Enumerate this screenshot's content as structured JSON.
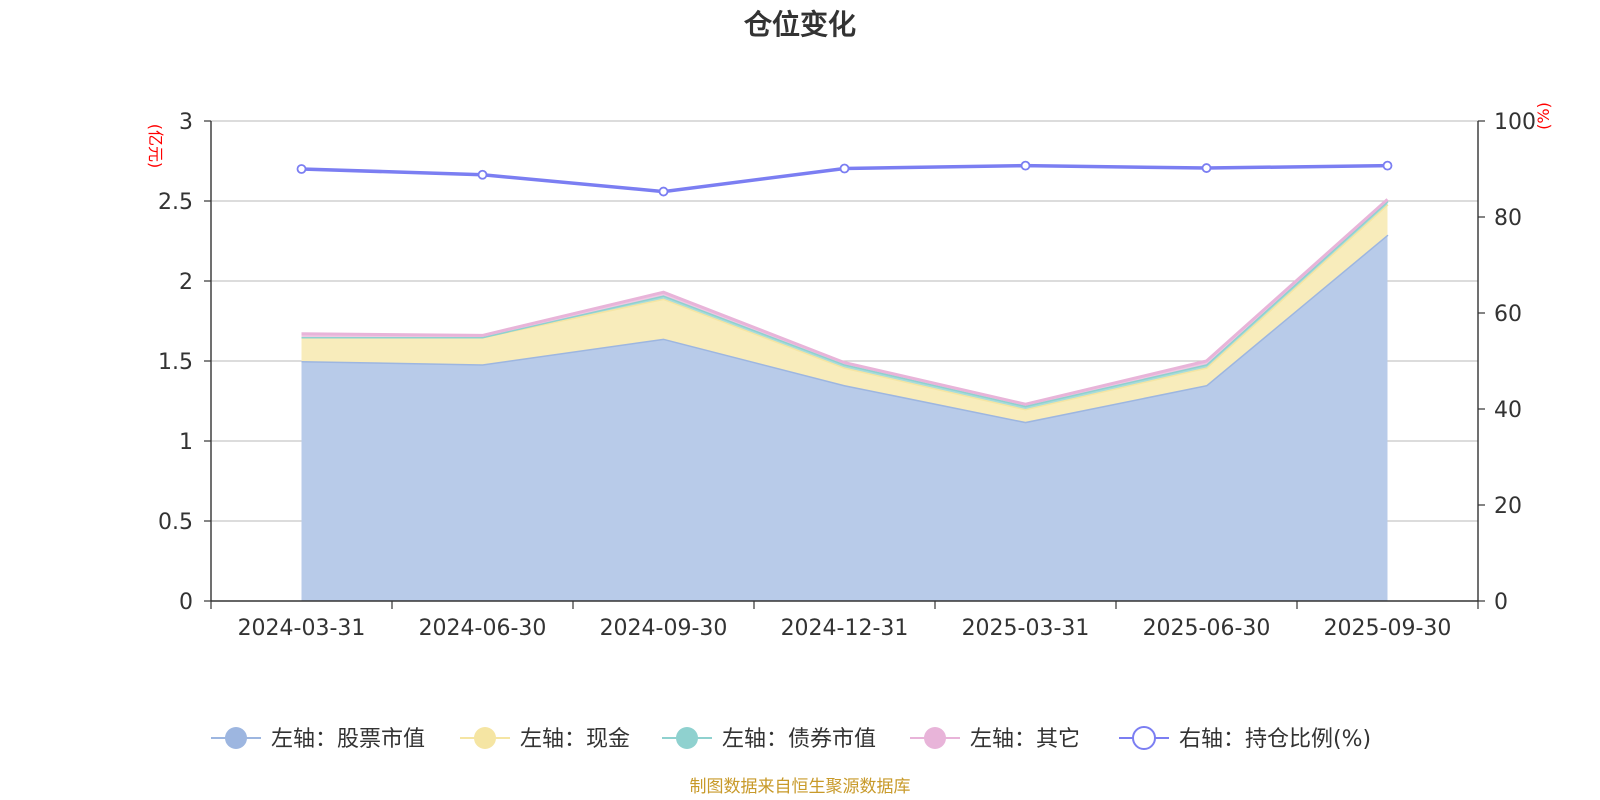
{
  "chart_data": {
    "type": "area",
    "title": "仓位变化",
    "categories": [
      "2024-03-31",
      "2024-06-30",
      "2024-09-30",
      "2024-12-31",
      "2025-03-31",
      "2025-06-30",
      "2025-09-30"
    ],
    "left_axis": {
      "label": "(亿元)",
      "min": 0,
      "max": 3,
      "ticks": [
        "0",
        "0.5",
        "1",
        "1.5",
        "2",
        "2.5",
        "3"
      ],
      "tick_values": [
        0,
        0.5,
        1,
        1.5,
        2,
        2.5,
        3
      ]
    },
    "right_axis": {
      "label": "(%)",
      "min": 0,
      "max": 100,
      "ticks": [
        "0",
        "20",
        "40",
        "60",
        "80",
        "100"
      ],
      "tick_values": [
        0,
        20,
        40,
        60,
        80,
        100
      ]
    },
    "series": [
      {
        "name": "左轴：股票市值",
        "axis": "left",
        "stack": true,
        "color": "#9db6e0",
        "fill": "#b8cbe9",
        "values": [
          1.5,
          1.48,
          1.64,
          1.35,
          1.12,
          1.35,
          2.29
        ]
      },
      {
        "name": "左轴：现金",
        "axis": "left",
        "stack": true,
        "color": "#f5e5a3",
        "fill": "#f8ecbb",
        "values": [
          0.15,
          0.17,
          0.25,
          0.11,
          0.08,
          0.11,
          0.19
        ]
      },
      {
        "name": "左轴：债券市值",
        "axis": "left",
        "stack": true,
        "color": "#8fd1cf",
        "fill": "#a7dcda",
        "values": [
          0.0,
          0.0,
          0.02,
          0.02,
          0.02,
          0.02,
          0.02
        ]
      },
      {
        "name": "左轴：其它",
        "axis": "left",
        "stack": true,
        "color": "#e8b4d9",
        "fill": "#efc8e3",
        "values": [
          0.02,
          0.01,
          0.02,
          0.01,
          0.01,
          0.02,
          0.01
        ]
      },
      {
        "name": "右轴：持仓比例(%)",
        "axis": "right",
        "stack": false,
        "type": "line",
        "color": "#7b7ef2",
        "values": [
          90.0,
          88.8,
          85.3,
          90.1,
          90.7,
          90.2,
          90.7
        ]
      }
    ],
    "grid": true,
    "legend_position": "bottom"
  },
  "source_note": "制图数据来自恒生聚源数据库"
}
